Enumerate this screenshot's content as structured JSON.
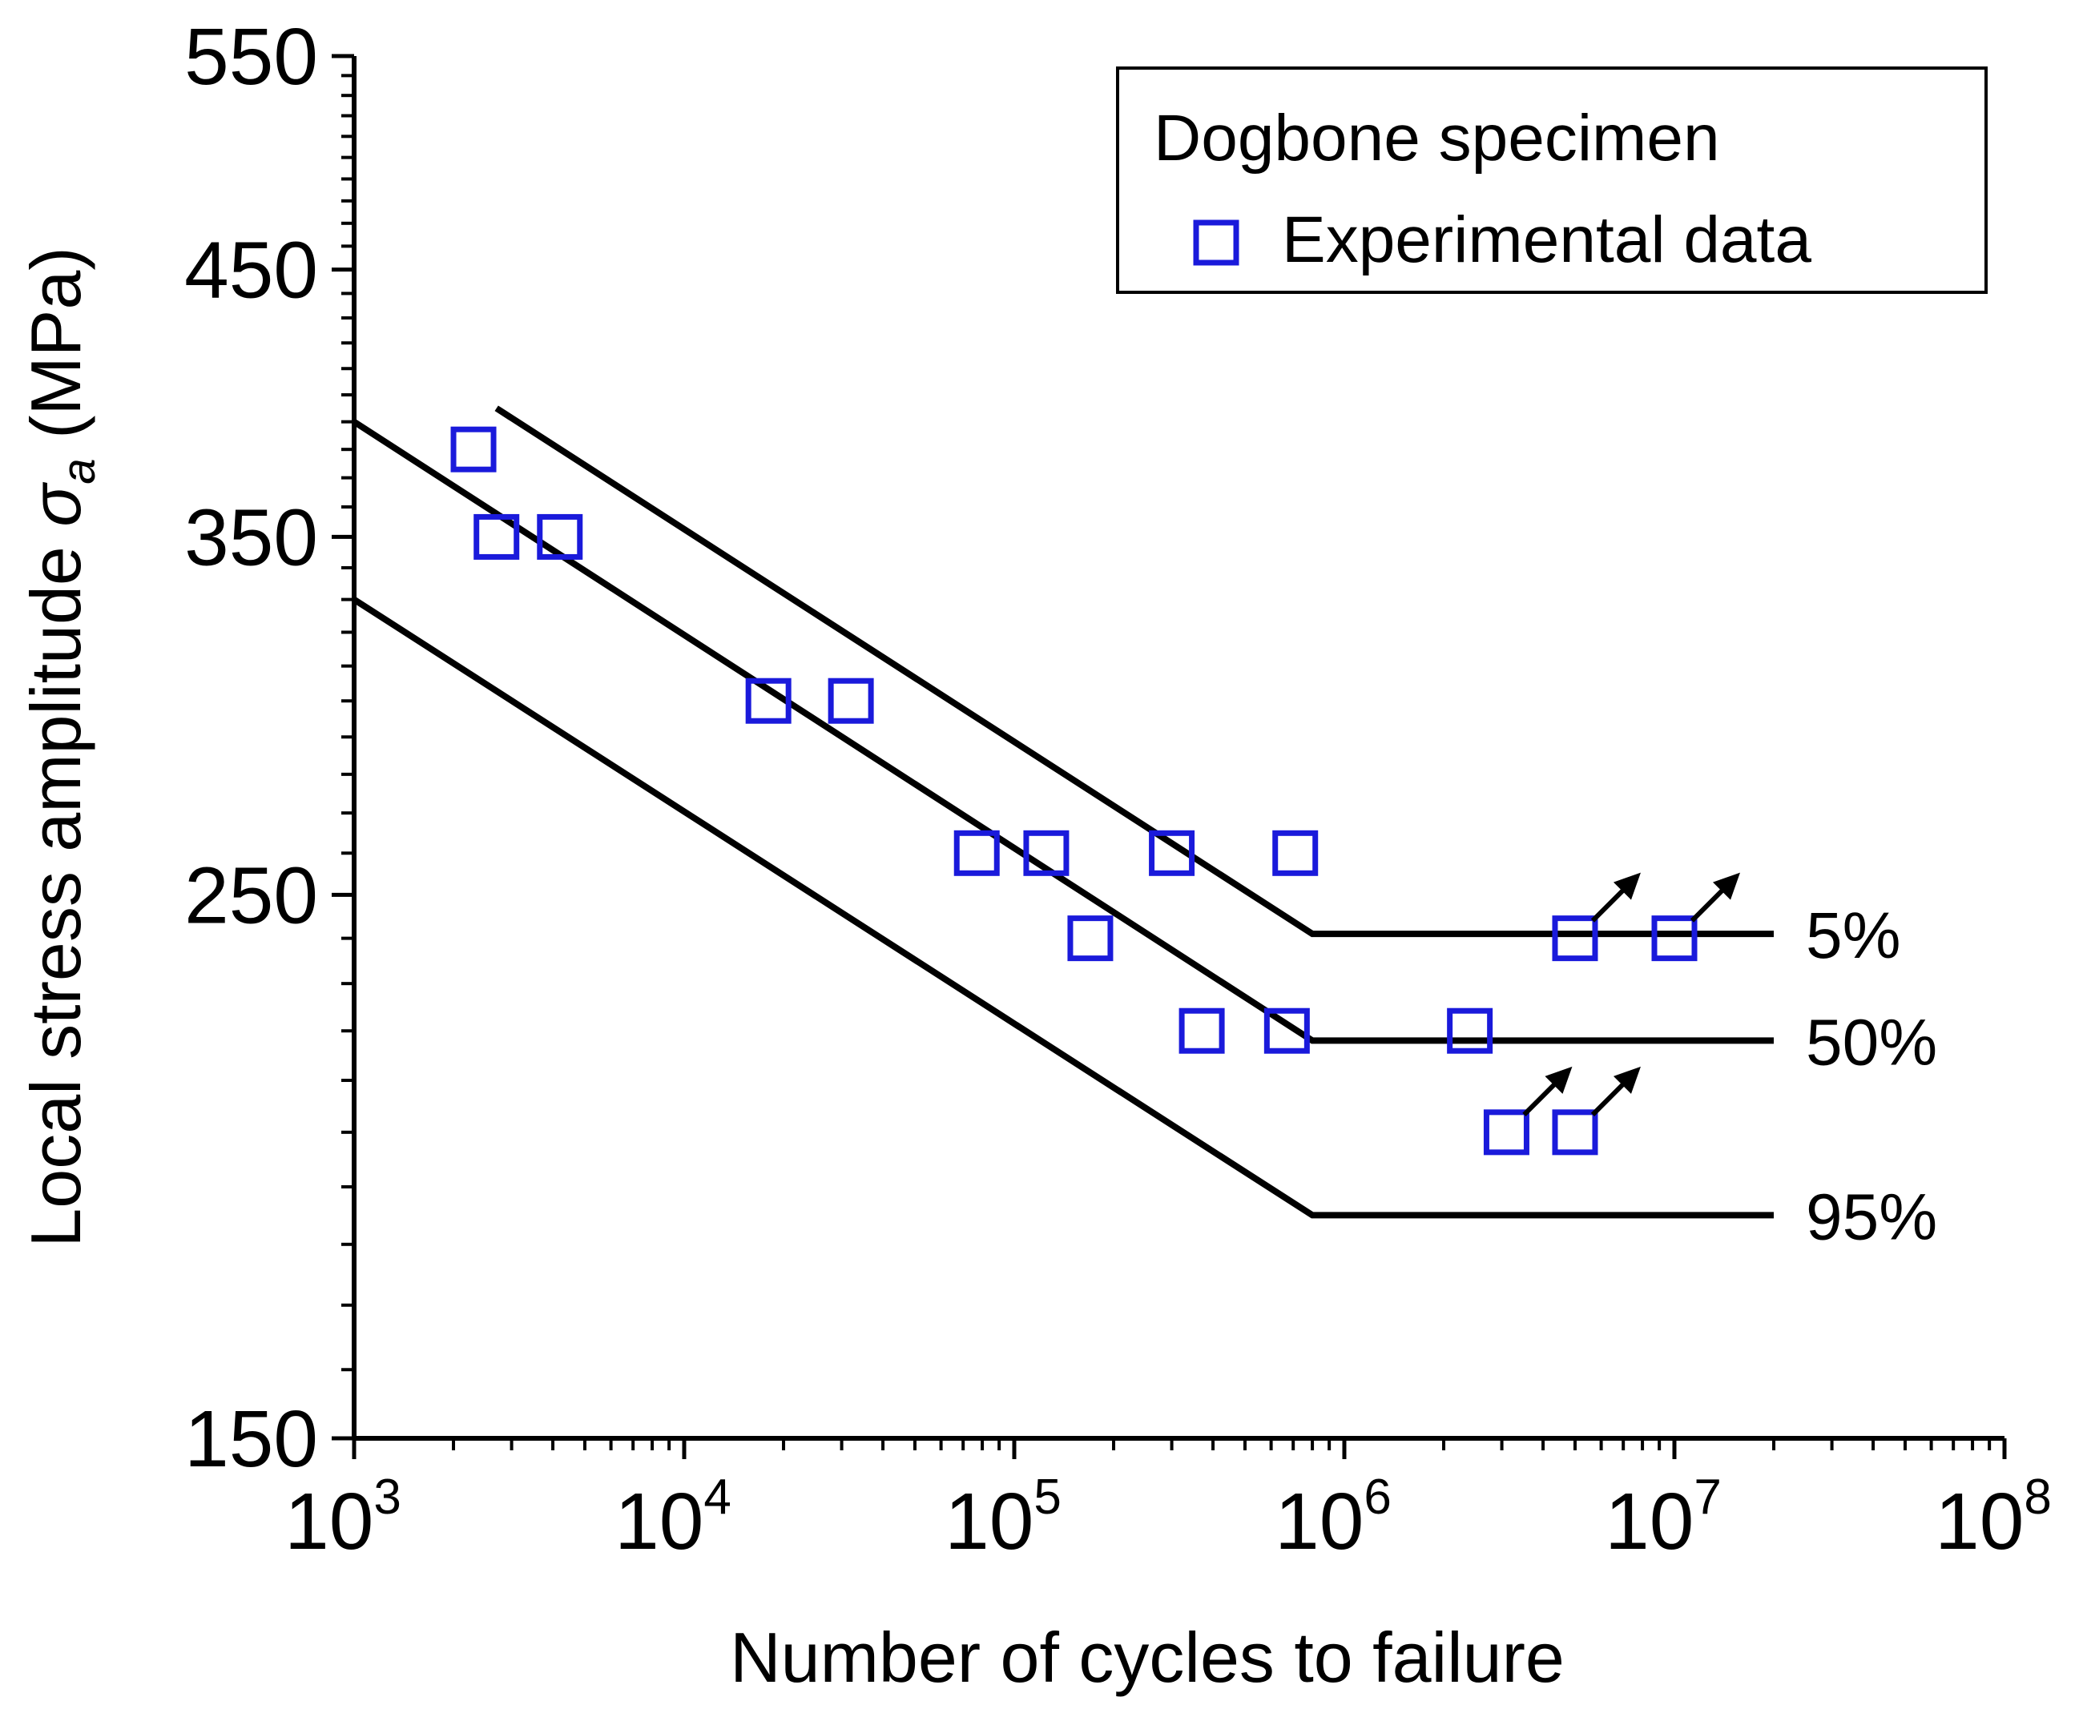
{
  "chart_data": {
    "type": "scatter",
    "title": "",
    "xlabel": "Number of cycles to failure",
    "ylabel": {
      "main": "Local stress amplitude ",
      "symbol": "σ",
      "subscript": "a",
      "unit": " (MPa)"
    },
    "x_scale": "log",
    "y_scale": "log",
    "xlim": [
      1000,
      100000000
    ],
    "ylim": [
      150,
      550
    ],
    "x_ticks": [
      {
        "value": 1000,
        "base": "10",
        "exp": "3"
      },
      {
        "value": 10000,
        "base": "10",
        "exp": "4"
      },
      {
        "value": 100000,
        "base": "10",
        "exp": "5"
      },
      {
        "value": 1000000,
        "base": "10",
        "exp": "6"
      },
      {
        "value": 10000000,
        "base": "10",
        "exp": "7"
      },
      {
        "value": 100000000,
        "base": "10",
        "exp": "8"
      }
    ],
    "y_ticks": [
      {
        "value": 150,
        "label": "150"
      },
      {
        "value": 250,
        "label": "250"
      },
      {
        "value": 350,
        "label": "350"
      },
      {
        "value": 450,
        "label": "450"
      },
      {
        "value": 550,
        "label": "550"
      }
    ],
    "legend": {
      "title": "Dogbone specimen",
      "entries": [
        {
          "label": "Experimental data",
          "marker": "open-square",
          "color": "#1a1adb"
        }
      ],
      "position": "top-right"
    },
    "series": [
      {
        "name": "Experimental data",
        "marker": "open-square",
        "color": "#1a1adb",
        "points": [
          {
            "x": 2300,
            "y": 380,
            "runout": false
          },
          {
            "x": 2700,
            "y": 350,
            "runout": false
          },
          {
            "x": 4200,
            "y": 350,
            "runout": false
          },
          {
            "x": 18000,
            "y": 300,
            "runout": false
          },
          {
            "x": 32000,
            "y": 300,
            "runout": false
          },
          {
            "x": 77000,
            "y": 260,
            "runout": false
          },
          {
            "x": 125000,
            "y": 260,
            "runout": false
          },
          {
            "x": 170000,
            "y": 240,
            "runout": false
          },
          {
            "x": 300000,
            "y": 260,
            "runout": false
          },
          {
            "x": 370000,
            "y": 220,
            "runout": false
          },
          {
            "x": 670000,
            "y": 220,
            "runout": false
          },
          {
            "x": 710000,
            "y": 260,
            "runout": false
          },
          {
            "x": 2400000,
            "y": 220,
            "runout": false
          },
          {
            "x": 3100000,
            "y": 200,
            "runout": true
          },
          {
            "x": 5000000,
            "y": 200,
            "runout": true
          },
          {
            "x": 5000000,
            "y": 240,
            "runout": true
          },
          {
            "x": 10000000,
            "y": 240,
            "runout": true
          }
        ]
      }
    ],
    "curves": [
      {
        "name": "5%",
        "label": "5%",
        "color": "#000000",
        "points": [
          [
            2700,
            395
          ],
          [
            800000,
            241
          ],
          [
            20000000,
            241
          ]
        ]
      },
      {
        "name": "50%",
        "label": "50%",
        "color": "#000000",
        "points": [
          [
            1000,
            390
          ],
          [
            800000,
            218
          ],
          [
            20000000,
            218
          ]
        ]
      },
      {
        "name": "95%",
        "label": "95%",
        "color": "#000000",
        "points": [
          [
            1000,
            330
          ],
          [
            800000,
            185
          ],
          [
            20000000,
            185
          ]
        ]
      }
    ]
  }
}
